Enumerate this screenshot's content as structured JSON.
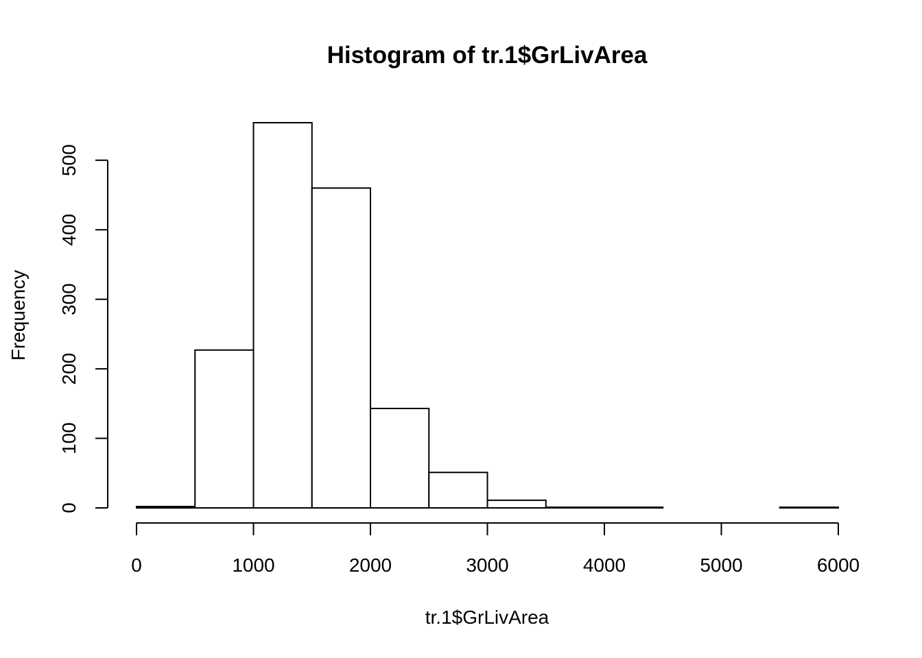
{
  "chart_data": {
    "type": "bar",
    "title": "Histogram of tr.1$GrLivArea",
    "xlabel": "tr.1$GrLivArea",
    "ylabel": "Frequency",
    "bin_edges": [
      0,
      500,
      1000,
      1500,
      2000,
      2500,
      3000,
      3500,
      4000,
      4500,
      5000,
      5500,
      6000
    ],
    "values": [
      2,
      227,
      554,
      460,
      143,
      51,
      11,
      1,
      1,
      0,
      0,
      1
    ],
    "xlim": [
      0,
      6000
    ],
    "ylim": [
      0,
      554
    ],
    "x_ticks": [
      0,
      1000,
      2000,
      3000,
      4000,
      5000,
      6000
    ],
    "x_tick_labels": [
      "0",
      "1000",
      "2000",
      "3000",
      "4000",
      "5000",
      "6000"
    ],
    "y_ticks": [
      0,
      100,
      200,
      300,
      400,
      500
    ],
    "y_tick_labels": [
      "0",
      "100",
      "200",
      "300",
      "400",
      "500"
    ],
    "grid": false,
    "bar_fill": "#ffffff",
    "bar_stroke": "#000000"
  }
}
